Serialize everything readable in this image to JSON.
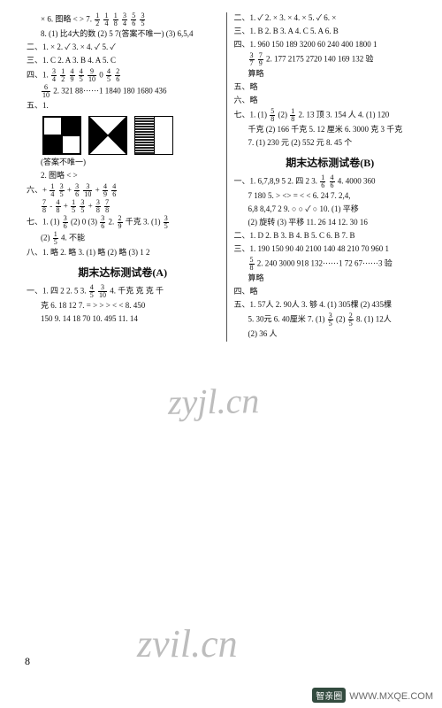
{
  "page_number": "8",
  "watermarks": [
    "zyjl.cn",
    "zvil.cn"
  ],
  "footer_brand": "智亲圈",
  "footer_url": "WWW.MXQE.COM",
  "heading_a": "期末达标测试卷(A)",
  "heading_b": "期末达标测试卷(B)",
  "left": {
    "p1": "× 6. 图略 < > 7. 1/2 1/4 1/8 3/4 5/6 3/5",
    "p2": "8. (1) 比4大的数 (2) 5 7(答案不唯一) (3) 6,5,4",
    "p3": "二、1. × 2. ✓ 3. × 4. ✓ 5. ✓",
    "p4": "三、1. C 2. A 3. B 4. A 5. C",
    "p5": "四、1. 3/4 1/2 4/9 4/5 9/10 0 4/5 2/6",
    "p6": " 6/10 2. 321 88······1 1840 180 1680 436",
    "p7": "五、1.",
    "p8": "(答案不唯一)",
    "p9": "2. 图略 < >",
    "p10": "六、+ 1/4 3/5 + 3/6 3/10 + 4/9 4/6",
    "p11": " 7/8 - 4/8 + 1/5 3/5 + 3/8 7/8",
    "p12": "七、1. (1) 3/6 (2) 0 (3) 3/6 2. 2/9 千克 3. (1) 3/5",
    "p13": " (2) 1/5 4. 不能",
    "p14": "八、1. 略 2. 略 3. (1) 略 (2) 略 (3) 1 2",
    "a1": "一、1. 四 2 2. 5 3. 4/5 3/10 4. 千克 克 克 千",
    "a2": " 克 6. 18 12 7. = > > > < < 8. 450",
    "a3": " 150 9. 14 18 70 10. 495 11. 14"
  },
  "right": {
    "p1": "二、1. ✓ 2. × 3. × 4. × 5. ✓ 6. ×",
    "p2": "三、1. B 2. B 3. A 4. C 5. A 6. B",
    "p3": "四、1. 960 150 189 3200 60 240 400 1800 1",
    "p4": " 3/7 7/9 2. 177 2175 2720 140 169 132 验",
    "p5": " 算略",
    "p6": "五、略",
    "p7": "六、略",
    "p8": "七、1. (1) 5/8 (2) 1/8 2. 13 顶 3. 154 人 4. (1) 120",
    "p9": " 千克 (2) 166 千克 5. 12 厘米 6. 3000 克 3 千克",
    "p10": " 7. (1) 230 元 (2) 552 元 8. 45 个",
    "b1": "一、1. 6,7,8,9 5 2. 四 2 3. 1/6 4/6 4. 4000 360",
    "b2": " 7 180 5. > <>  = < < 6. 24 7. 2,4,",
    "b3": " 6,8 8,4,7 2 9. ○ ○ ✓ ○ 10. (1) 平移",
    "b4": " (2) 旋转 (3) 平移 11. 26 14 12. 30 16",
    "b5": "二、1. D 2. B 3. B 4. B 5. C 6. B 7. B",
    "b6": "三、1. 190 150 90 40 2100 140 48 210 70 960 1",
    "b7": " 5/8 2. 240 3000 918 132······1 72 67······3 验",
    "b8": " 算略",
    "b9": "四、略",
    "b10": "五、1. 57人 2. 90人 3. 够 4. (1) 305棵 (2) 435棵",
    "b11": " 5. 30元 6. 40厘米 7. (1) 3/5 (2) 2/5 8. (1) 12人",
    "b12": " (2) 36 人"
  }
}
